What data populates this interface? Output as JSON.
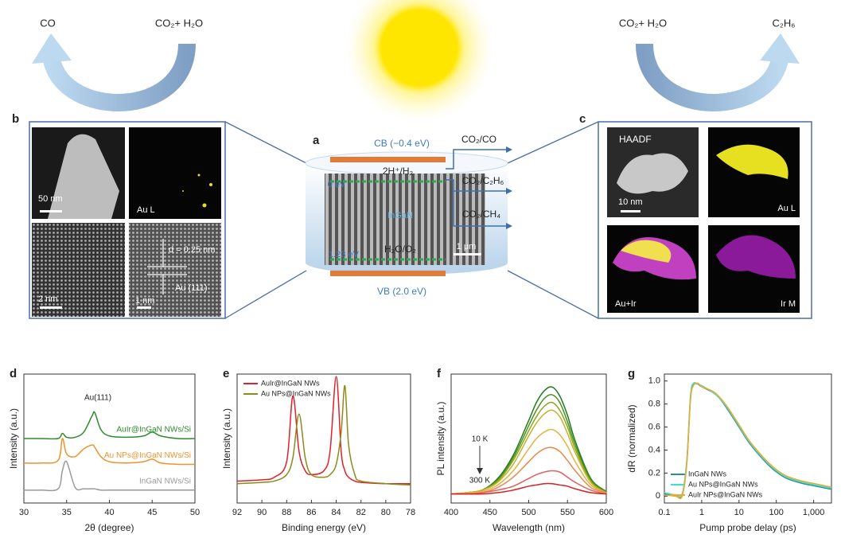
{
  "top": {
    "left_product": "CO",
    "left_reactant": "CO₂+ H₂O",
    "right_reactant": "CO₂+ H₂O",
    "right_product": "C₂H₆"
  },
  "panel_a": {
    "label": "a",
    "cb": "CB (−0.4 eV)",
    "vb": "VB (2.0 eV)",
    "h2": "2H⁺/H₂",
    "zero": "0 eV",
    "material": "InGaN",
    "level": "1.23 eV",
    "o2": "H₂O/O₂",
    "scale": "1 μm",
    "products": [
      "CO₂/CO",
      "CO₂/C₂H₆",
      "CO₂/CH₄"
    ]
  },
  "panel_b": {
    "label": "b",
    "tiles": [
      "50 nm",
      "Au L",
      "2 nm",
      "1 nm"
    ],
    "spacing": "d = 0.25 nm",
    "plane": "Au (111)"
  },
  "panel_c": {
    "label": "c",
    "tiles": [
      "HAADF",
      "10 nm",
      "Au L",
      "Au+Ir",
      "Ir M"
    ]
  },
  "chart_data": [
    {
      "type": "line",
      "label": "d",
      "x_label": "2θ (degree)",
      "y_label": "Intensity (a.u.)",
      "annotations": [
        "Au(111)"
      ],
      "legend": "inline",
      "x": [
        30,
        32,
        34,
        34.5,
        35,
        36,
        37,
        38,
        38.3,
        39,
        40,
        42,
        44,
        45,
        46,
        48,
        50
      ],
      "xlim": [
        30,
        50
      ],
      "xticks": [
        30,
        35,
        40,
        45,
        50
      ],
      "ylim": [
        0,
        1
      ],
      "series": [
        {
          "name": "AuIr@InGaN NWs/Si",
          "color": "#2e8b2e",
          "values": [
            0.5,
            0.5,
            0.5,
            0.54,
            0.51,
            0.51,
            0.55,
            0.68,
            0.7,
            0.57,
            0.52,
            0.51,
            0.52,
            0.55,
            0.52,
            0.5,
            0.5
          ]
        },
        {
          "name": "Au NPs@InGaN NWs/Si",
          "color": "#f0922b",
          "values": [
            0.31,
            0.31,
            0.33,
            0.5,
            0.38,
            0.36,
            0.42,
            0.45,
            0.43,
            0.36,
            0.32,
            0.31,
            0.32,
            0.34,
            0.31,
            0.3,
            0.3
          ]
        },
        {
          "name": "InGaN NWs/Si",
          "color": "#9a9a9a",
          "values": [
            0.1,
            0.1,
            0.11,
            0.25,
            0.32,
            0.12,
            0.11,
            0.11,
            0.11,
            0.1,
            0.1,
            0.1,
            0.1,
            0.1,
            0.1,
            0.1,
            0.1
          ]
        }
      ]
    },
    {
      "type": "line",
      "label": "e",
      "x_label": "Binding energy (eV)",
      "y_label": "Intensity (a.u.)",
      "legend": "top-left",
      "x": [
        92,
        90,
        89,
        88,
        87.5,
        87,
        86.5,
        86,
        85,
        84.5,
        84,
        83.6,
        83.3,
        83,
        82.5,
        82,
        80,
        78
      ],
      "xlim": [
        92,
        78
      ],
      "xticks": [
        92,
        90,
        88,
        86,
        84,
        82,
        80,
        78
      ],
      "ylim": [
        0,
        1
      ],
      "series": [
        {
          "name": "AuIr@InGaN NWs",
          "color": "#e0202a",
          "values": [
            0.17,
            0.18,
            0.2,
            0.32,
            0.83,
            0.4,
            0.25,
            0.22,
            0.25,
            0.4,
            0.98,
            0.4,
            0.25,
            0.2,
            0.17,
            0.16,
            0.15,
            0.15
          ]
        },
        {
          "name": "Au NPs@InGaN NWs",
          "color": "#8b8b1a",
          "values": [
            0.15,
            0.16,
            0.17,
            0.22,
            0.35,
            0.69,
            0.35,
            0.22,
            0.2,
            0.22,
            0.3,
            0.55,
            0.91,
            0.45,
            0.22,
            0.17,
            0.15,
            0.14
          ]
        }
      ]
    },
    {
      "type": "line",
      "label": "f",
      "x_label": "Wavelength (nm)",
      "y_label": "PL intensity (a.u.)",
      "annotations": [
        "10 K",
        "300 K"
      ],
      "x": [
        400,
        420,
        440,
        460,
        480,
        500,
        510,
        520,
        530,
        540,
        550,
        560,
        580,
        600
      ],
      "xlim": [
        400,
        600
      ],
      "xticks": [
        400,
        450,
        500,
        550,
        600
      ],
      "ylim": [
        0,
        1
      ],
      "series": [
        {
          "color": "#1e7b1e",
          "values": [
            0.07,
            0.08,
            0.1,
            0.19,
            0.37,
            0.64,
            0.78,
            0.87,
            0.9,
            0.83,
            0.68,
            0.48,
            0.19,
            0.09
          ]
        },
        {
          "color": "#4c8f1e",
          "values": [
            0.07,
            0.08,
            0.1,
            0.18,
            0.35,
            0.6,
            0.72,
            0.81,
            0.84,
            0.78,
            0.63,
            0.45,
            0.18,
            0.09
          ]
        },
        {
          "color": "#8aa61e",
          "values": [
            0.07,
            0.08,
            0.1,
            0.17,
            0.33,
            0.56,
            0.67,
            0.75,
            0.78,
            0.72,
            0.59,
            0.42,
            0.17,
            0.08
          ]
        },
        {
          "color": "#c2b22a",
          "values": [
            0.07,
            0.08,
            0.1,
            0.16,
            0.3,
            0.52,
            0.62,
            0.69,
            0.72,
            0.67,
            0.54,
            0.39,
            0.16,
            0.08
          ]
        },
        {
          "color": "#e8b040",
          "values": [
            0.07,
            0.08,
            0.09,
            0.14,
            0.25,
            0.42,
            0.5,
            0.55,
            0.57,
            0.53,
            0.44,
            0.32,
            0.14,
            0.08
          ]
        },
        {
          "color": "#e8884a",
          "values": [
            0.07,
            0.07,
            0.08,
            0.12,
            0.2,
            0.32,
            0.38,
            0.42,
            0.43,
            0.4,
            0.33,
            0.25,
            0.12,
            0.08
          ]
        },
        {
          "color": "#e06060",
          "values": [
            0.07,
            0.07,
            0.08,
            0.1,
            0.13,
            0.19,
            0.22,
            0.24,
            0.25,
            0.24,
            0.2,
            0.16,
            0.1,
            0.07
          ]
        },
        {
          "color": "#d42020",
          "values": [
            0.07,
            0.07,
            0.07,
            0.08,
            0.1,
            0.13,
            0.14,
            0.15,
            0.15,
            0.14,
            0.13,
            0.11,
            0.08,
            0.07
          ]
        }
      ]
    },
    {
      "type": "line",
      "label": "g",
      "x_label": "Pump probe delay (ps)",
      "y_label": "dR (normalized)",
      "legend": "bottom-left",
      "xscale": "log",
      "x": [
        0.1,
        0.2,
        0.3,
        0.4,
        0.5,
        0.6,
        0.8,
        1,
        2,
        3,
        5,
        10,
        20,
        50,
        100,
        200,
        500,
        1000,
        2000,
        3000
      ],
      "xlim": [
        0.1,
        3000
      ],
      "xticks": [
        0.1,
        1,
        10,
        100,
        {
          "value": 1000,
          "label": "1,000"
        }
      ],
      "ylim": [
        -0.06,
        1.06
      ],
      "yticks": [
        0,
        0.2,
        0.4,
        0.6,
        0.8,
        {
          "value": 1,
          "label": "1.0"
        }
      ],
      "series": [
        {
          "name": "InGaN NWs",
          "color": "#2a8ca0",
          "values": [
            0.02,
            0.0,
            0.01,
            0.3,
            0.85,
            0.97,
            0.97,
            0.95,
            0.9,
            0.85,
            0.75,
            0.6,
            0.45,
            0.3,
            0.21,
            0.15,
            0.11,
            0.09,
            0.07,
            0.06
          ]
        },
        {
          "name": "Au NPs@InGaN NWs",
          "color": "#40e0d0",
          "values": [
            0.03,
            0.01,
            0.02,
            0.32,
            0.87,
            0.98,
            0.97,
            0.96,
            0.9,
            0.85,
            0.76,
            0.61,
            0.46,
            0.31,
            0.22,
            0.16,
            0.12,
            0.1,
            0.08,
            0.07
          ]
        },
        {
          "name": "AuIr NPs@InGaN NWs",
          "color": "#f5a623",
          "values": [
            0.01,
            0.0,
            0.0,
            0.28,
            0.83,
            0.96,
            0.98,
            0.95,
            0.91,
            0.86,
            0.77,
            0.62,
            0.47,
            0.32,
            0.23,
            0.17,
            0.13,
            0.11,
            0.09,
            0.08
          ]
        }
      ]
    }
  ]
}
